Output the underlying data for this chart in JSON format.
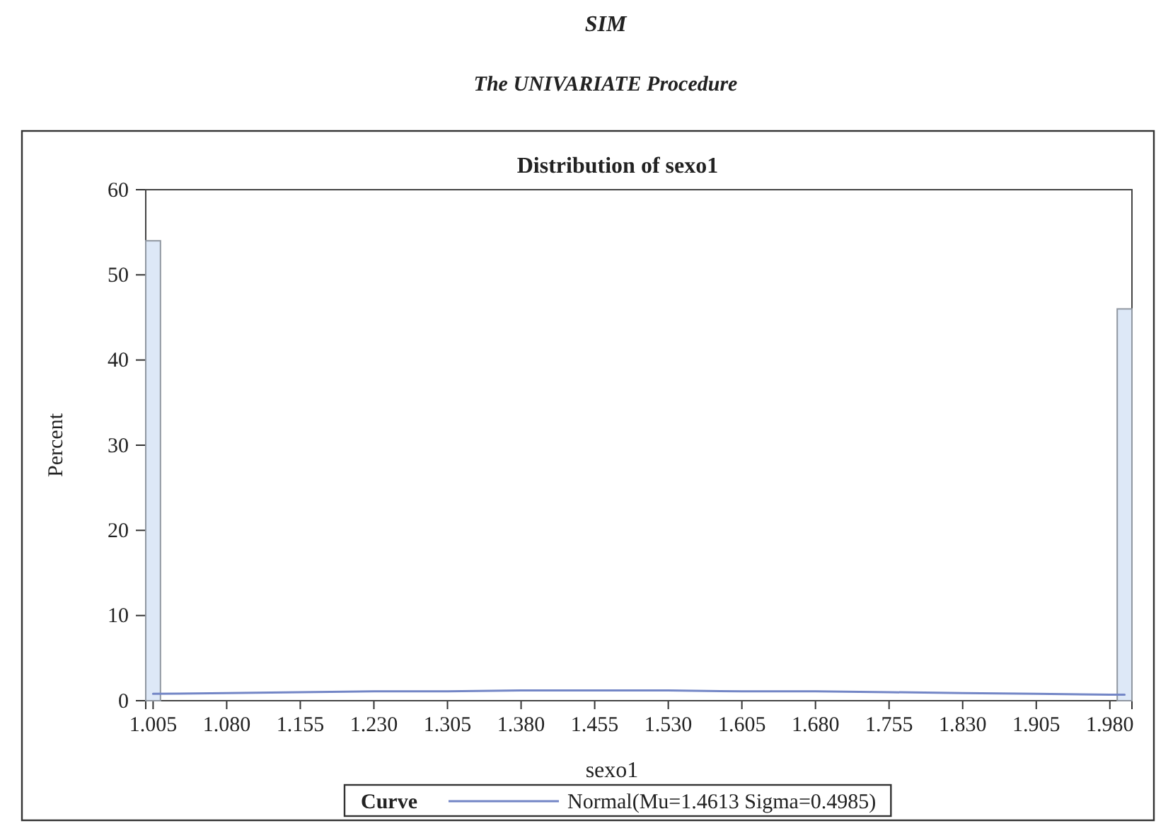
{
  "chart_data": {
    "type": "histogram",
    "title": "Distribution of sexo1",
    "annotations": [
      "SIM",
      "The UNIVARIATE Procedure"
    ],
    "xlabel": "sexo1",
    "ylabel": "Percent",
    "legend_title": "Curve",
    "legend": "bottom",
    "bins": [
      0.9975,
      1.0125,
      1.9875,
      2.0025
    ],
    "series": [
      {
        "color": "#dde8f7",
        "values": [
          54,
          0,
          46
        ]
      },
      {
        "type": "line",
        "name": "Normal(Mu=1.4613 Sigma=0.4985)",
        "color": "#7386c6",
        "x": [
          1.005,
          1.08,
          1.155,
          1.23,
          1.305,
          1.38,
          1.455,
          1.53,
          1.605,
          1.68,
          1.755,
          1.83,
          1.905,
          1.98,
          1.995
        ],
        "values": [
          0.8,
          0.9,
          1.0,
          1.1,
          1.1,
          1.2,
          1.2,
          1.2,
          1.1,
          1.1,
          1.0,
          0.9,
          0.8,
          0.7,
          0.7
        ]
      }
    ],
    "xlim": [
      0.9975,
      2.0025
    ],
    "xticks": [
      1.005,
      {
        "value": 1.08,
        "label": "1.080"
      },
      1.155,
      {
        "value": 1.23,
        "label": "1.230"
      },
      1.305,
      {
        "value": 1.38,
        "label": "1.380"
      },
      1.455,
      {
        "value": 1.53,
        "label": "1.530"
      },
      1.605,
      {
        "value": 1.68,
        "label": "1.680"
      },
      1.755,
      {
        "value": 1.83,
        "label": "1.830"
      },
      1.905,
      {
        "value": 1.98,
        "label": "1.980"
      }
    ],
    "ylim": [
      0,
      60
    ],
    "yticks": [
      0,
      10,
      20,
      30,
      40,
      50,
      60
    ]
  }
}
